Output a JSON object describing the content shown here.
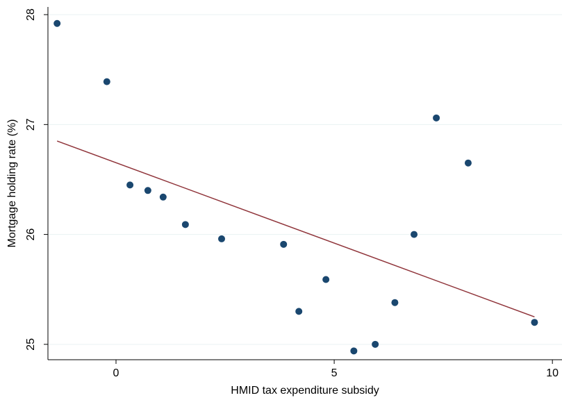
{
  "chart_data": {
    "type": "scatter",
    "x_label": "HMID tax expenditure subsidy",
    "y_label": "Mortgage holding rate (%)",
    "xlim": [
      -1.56,
      10.22
    ],
    "xticks": [
      0,
      5,
      10
    ],
    "ylim": [
      24.86,
      28.07
    ],
    "yticks": [
      25,
      26,
      27,
      28
    ],
    "grid": true,
    "series": [
      {
        "type": "scatter",
        "color": "#1a476f",
        "x": [
          -1.35,
          -0.21,
          0.32,
          0.73,
          1.08,
          1.59,
          2.42,
          3.84,
          4.81,
          4.19,
          5.45,
          5.94,
          6.39,
          6.83,
          7.34,
          8.07,
          9.59
        ],
        "values": [
          27.92,
          27.39,
          26.45,
          26.4,
          26.34,
          26.09,
          25.96,
          25.91,
          25.59,
          25.3,
          24.94,
          25.0,
          25.38,
          26.0,
          27.06,
          26.65,
          25.2
        ]
      },
      {
        "type": "line",
        "color": "#90353b",
        "x": [
          -1.35,
          9.59
        ],
        "values": [
          26.85,
          25.25
        ]
      }
    ]
  }
}
